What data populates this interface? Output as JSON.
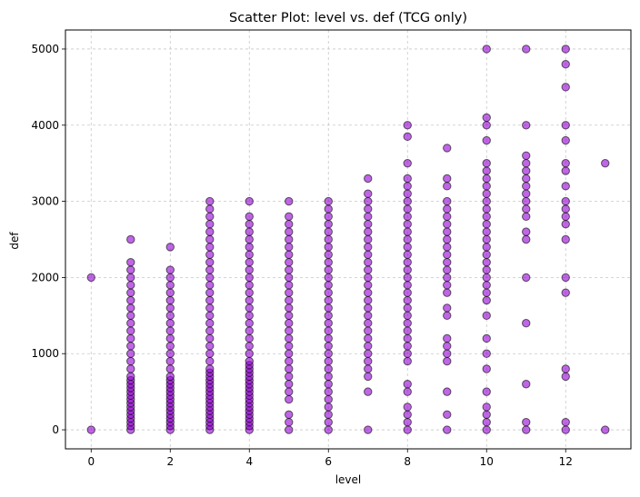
{
  "chart_data": {
    "type": "scatter",
    "title": "Scatter Plot: level vs. def (TCG only)",
    "xlabel": "level",
    "ylabel": "def",
    "xlim": [
      -0.65,
      13.65
    ],
    "ylim": [
      -250,
      5250
    ],
    "xticks": [
      0,
      2,
      4,
      6,
      8,
      10,
      12
    ],
    "yticks": [
      0,
      1000,
      2000,
      3000,
      4000,
      5000
    ],
    "grid": true,
    "grid_style": "dashed",
    "marker_color": "#9400d3",
    "marker_edge_color": "#000000",
    "marker_alpha": 0.6,
    "points": [
      {
        "x": 0,
        "y": [
          0,
          2000
        ]
      },
      {
        "x": 1,
        "y": [
          0,
          50,
          100,
          150,
          200,
          250,
          300,
          350,
          400,
          450,
          500,
          550,
          600,
          650,
          700,
          800,
          900,
          1000,
          1100,
          1200,
          1300,
          1400,
          1500,
          1600,
          1700,
          1800,
          1900,
          2000,
          2100,
          2200,
          2500
        ]
      },
      {
        "x": 2,
        "y": [
          0,
          50,
          100,
          150,
          200,
          250,
          300,
          350,
          400,
          450,
          500,
          550,
          600,
          650,
          700,
          800,
          900,
          1000,
          1100,
          1200,
          1300,
          1400,
          1500,
          1600,
          1700,
          1800,
          1900,
          2000,
          2100,
          2400
        ]
      },
      {
        "x": 3,
        "y": [
          0,
          50,
          100,
          150,
          200,
          250,
          300,
          350,
          400,
          450,
          500,
          550,
          600,
          650,
          700,
          750,
          800,
          900,
          1000,
          1100,
          1200,
          1300,
          1400,
          1500,
          1600,
          1700,
          1800,
          1900,
          2000,
          2100,
          2200,
          2300,
          2400,
          2500,
          2600,
          2700,
          2800,
          2900,
          3000
        ]
      },
      {
        "x": 4,
        "y": [
          0,
          50,
          100,
          150,
          200,
          250,
          300,
          350,
          400,
          450,
          500,
          550,
          600,
          650,
          700,
          750,
          800,
          850,
          900,
          1000,
          1100,
          1200,
          1300,
          1400,
          1500,
          1600,
          1700,
          1800,
          1900,
          2000,
          2100,
          2200,
          2300,
          2400,
          2500,
          2600,
          2700,
          2800,
          3000
        ]
      },
      {
        "x": 5,
        "y": [
          0,
          100,
          200,
          400,
          500,
          600,
          700,
          800,
          900,
          1000,
          1100,
          1200,
          1300,
          1400,
          1500,
          1600,
          1700,
          1800,
          1900,
          2000,
          2100,
          2200,
          2300,
          2400,
          2500,
          2600,
          2700,
          2800,
          3000
        ]
      },
      {
        "x": 6,
        "y": [
          0,
          100,
          200,
          300,
          400,
          500,
          600,
          700,
          800,
          900,
          1000,
          1100,
          1200,
          1300,
          1400,
          1500,
          1600,
          1700,
          1800,
          1900,
          2000,
          2100,
          2200,
          2300,
          2400,
          2500,
          2600,
          2700,
          2800,
          2900,
          3000
        ]
      },
      {
        "x": 7,
        "y": [
          0,
          500,
          700,
          800,
          900,
          1000,
          1100,
          1200,
          1300,
          1400,
          1500,
          1600,
          1700,
          1800,
          1900,
          2000,
          2100,
          2200,
          2300,
          2400,
          2500,
          2600,
          2700,
          2800,
          2900,
          3000,
          3100,
          3300
        ]
      },
      {
        "x": 8,
        "y": [
          0,
          100,
          200,
          300,
          500,
          600,
          900,
          1000,
          1100,
          1200,
          1300,
          1400,
          1500,
          1600,
          1700,
          1800,
          1900,
          2000,
          2100,
          2200,
          2300,
          2400,
          2500,
          2600,
          2700,
          2800,
          2900,
          3000,
          3100,
          3200,
          3300,
          3500,
          3850,
          4000
        ]
      },
      {
        "x": 9,
        "y": [
          0,
          200,
          500,
          900,
          1000,
          1100,
          1200,
          1500,
          1600,
          1800,
          1900,
          2000,
          2100,
          2200,
          2300,
          2400,
          2500,
          2600,
          2700,
          2800,
          2900,
          3000,
          3200,
          3300,
          3700
        ]
      },
      {
        "x": 10,
        "y": [
          0,
          100,
          200,
          300,
          500,
          800,
          1000,
          1200,
          1500,
          1700,
          1800,
          1900,
          2000,
          2100,
          2200,
          2300,
          2400,
          2500,
          2600,
          2700,
          2800,
          2900,
          3000,
          3100,
          3200,
          3300,
          3400,
          3500,
          3800,
          4000,
          4100,
          5000
        ]
      },
      {
        "x": 11,
        "y": [
          0,
          100,
          600,
          1400,
          2000,
          2500,
          2600,
          2800,
          2900,
          3000,
          3100,
          3200,
          3300,
          3400,
          3500,
          3600,
          4000,
          5000
        ]
      },
      {
        "x": 12,
        "y": [
          0,
          100,
          700,
          800,
          1800,
          2000,
          2500,
          2700,
          2800,
          2900,
          3000,
          3200,
          3400,
          3500,
          3800,
          4000,
          4500,
          4800,
          5000
        ]
      },
      {
        "x": 13,
        "y": [
          0,
          3500
        ]
      }
    ]
  }
}
